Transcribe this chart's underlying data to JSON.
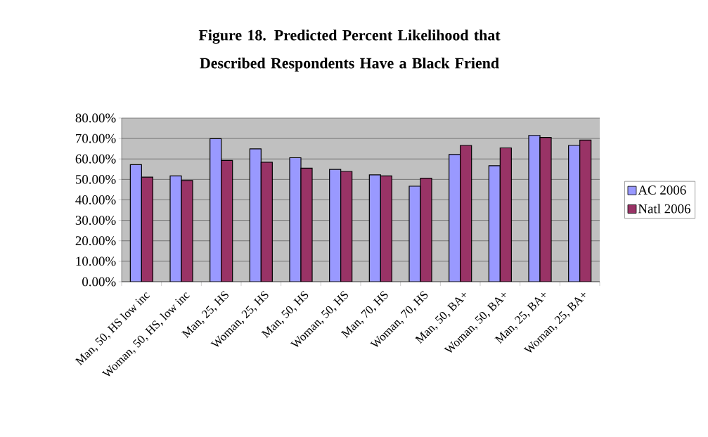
{
  "chart_data": {
    "type": "bar",
    "title": "Figure 18. Predicted Percent Likelihood that Described Respondents Have a Black Friend",
    "categories": [
      "Man, 50, HS low inc",
      "Woman, 50, HS, low inc",
      "Man, 25, HS",
      "Woman, 25, HS",
      "Man, 50, HS",
      "Woman, 50, HS",
      "Man, 70, HS",
      "Woman, 70, HS",
      "Man, 50, BA+",
      "Woman, 50, BA+",
      "Man, 25, BA+",
      "Woman, 25, BA+"
    ],
    "series": [
      {
        "name": "AC 2006",
        "color": "#9999ff",
        "values": [
          57.2,
          51.7,
          69.9,
          64.9,
          60.6,
          54.9,
          52.2,
          46.7,
          62.2,
          56.7,
          71.5,
          66.6
        ]
      },
      {
        "name": "Natl 2006",
        "color": "#993366",
        "values": [
          51.1,
          49.5,
          59.3,
          58.4,
          55.5,
          53.9,
          51.7,
          50.6,
          66.6,
          65.4,
          70.5,
          69.2
        ]
      }
    ],
    "ylim": [
      0,
      80
    ],
    "yticks": [
      {
        "value": 0,
        "label": "0.00%"
      },
      {
        "value": 10,
        "label": "10.00%"
      },
      {
        "value": 20,
        "label": "20.00%"
      },
      {
        "value": 30,
        "label": "30.00%"
      },
      {
        "value": 40,
        "label": "40.00%"
      },
      {
        "value": 50,
        "label": "50.00%"
      },
      {
        "value": 60,
        "label": "60.00%"
      },
      {
        "value": 70,
        "label": "70.00%"
      },
      {
        "value": 80,
        "label": "80.00%"
      }
    ],
    "grid": "y",
    "legend": "right"
  }
}
